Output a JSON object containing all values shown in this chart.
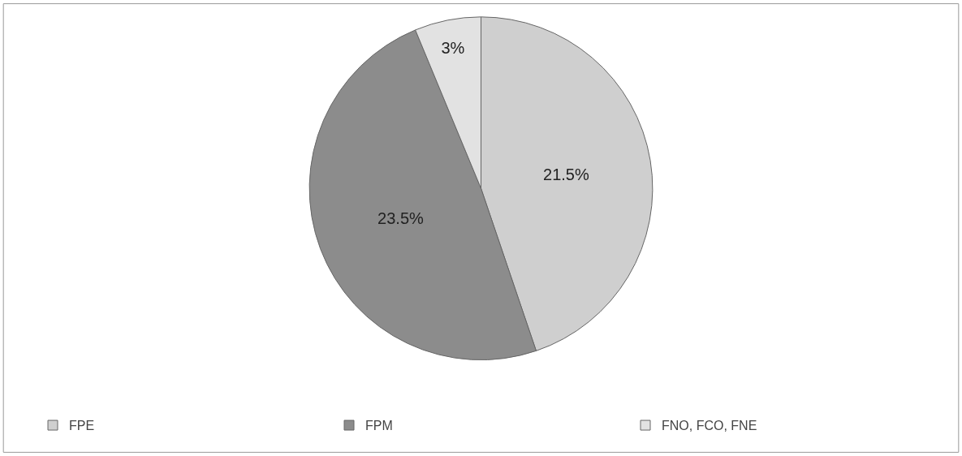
{
  "chart_data": {
    "type": "pie",
    "categories": [
      "FPE",
      "FPM",
      "FNO, FCO, FNE"
    ],
    "values": [
      21.5,
      23.5,
      3
    ],
    "value_labels": [
      "21.5%",
      "23.5%",
      "3%"
    ],
    "colors": [
      "#cfcfcf",
      "#8c8c8c",
      "#e2e2e2"
    ],
    "legend": "bottom"
  }
}
